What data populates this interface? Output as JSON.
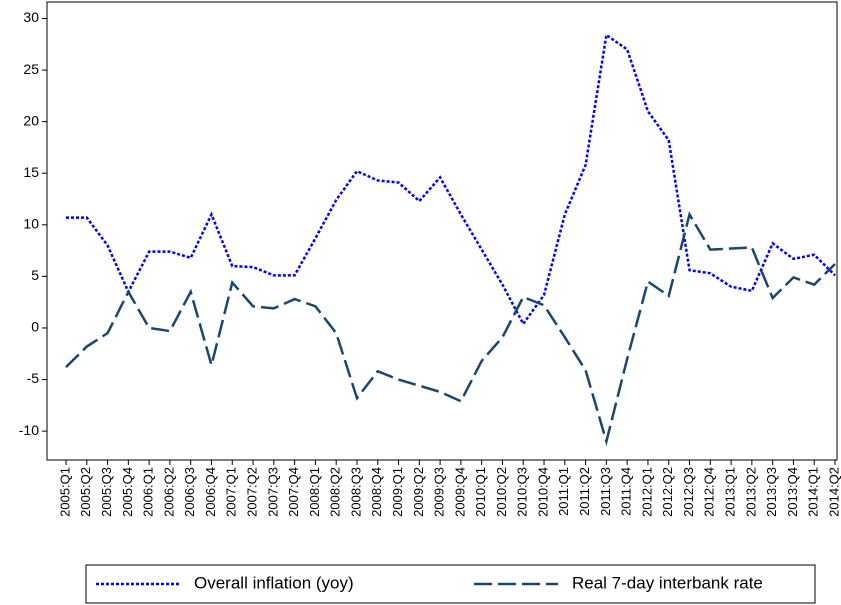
{
  "chart_data": {
    "type": "line",
    "categories": [
      "2005:Q1",
      "2005:Q2",
      "2005:Q3",
      "2005:Q4",
      "2006:Q1",
      "2006:Q2",
      "2006:Q3",
      "2006:Q4",
      "2007:Q1",
      "2007:Q2",
      "2007:Q3",
      "2007:Q4",
      "2008:Q1",
      "2008:Q2",
      "2008:Q3",
      "2008:Q4",
      "2009:Q1",
      "2009:Q2",
      "2009:Q3",
      "2009:Q4",
      "2010:Q1",
      "2010:Q2",
      "2010:Q3",
      "2010:Q4",
      "2011:Q1",
      "2011:Q2",
      "2011:Q3",
      "2011:Q4",
      "2012:Q1",
      "2012:Q2",
      "2012:Q3",
      "2012:Q4",
      "2013:Q1",
      "2013:Q2",
      "2013:Q3",
      "2013:Q4",
      "2014:Q1",
      "2014:Q2"
    ],
    "series": [
      {
        "name": "Overall inflation (yoy)",
        "color": "#0000ff",
        "line_style": "dotted",
        "values": [
          10.7,
          10.7,
          8,
          3.5,
          7.4,
          7.4,
          6.8,
          11,
          6,
          5.9,
          5.1,
          5.1,
          8.7,
          12.4,
          15.2,
          14.3,
          14.1,
          12.3,
          14.6,
          11,
          7.6,
          4.2,
          0.4,
          3.2,
          11,
          15.8,
          28.4,
          27,
          21,
          18.2,
          5.6,
          5.3,
          4,
          3.6,
          8.2,
          6.7,
          7.1,
          5.1
        ]
      },
      {
        "name": "Real 7-day interbank rate",
        "color": "#1a476f",
        "line_style": "dashed",
        "values": [
          -3.8,
          -1.8,
          -0.5,
          3.5,
          0,
          -0.3,
          3.5,
          -3.6,
          4.4,
          2.1,
          1.9,
          2.8,
          2.1,
          -0.5,
          -6.8,
          -4.2,
          -5,
          -5.6,
          -6.2,
          -7.1,
          -3.2,
          -0.9,
          3,
          2.2,
          -0.9,
          -4.1,
          -11,
          -3,
          4.5,
          3.1,
          11,
          7.6,
          7.7,
          7.8,
          2.9,
          4.9,
          4.2,
          6.2
        ]
      }
    ],
    "ylim": [
      -12.8,
      31.6
    ],
    "yticks": [
      -10,
      -5,
      0,
      5,
      10,
      15,
      20,
      25,
      30
    ],
    "legend": "bottom"
  }
}
